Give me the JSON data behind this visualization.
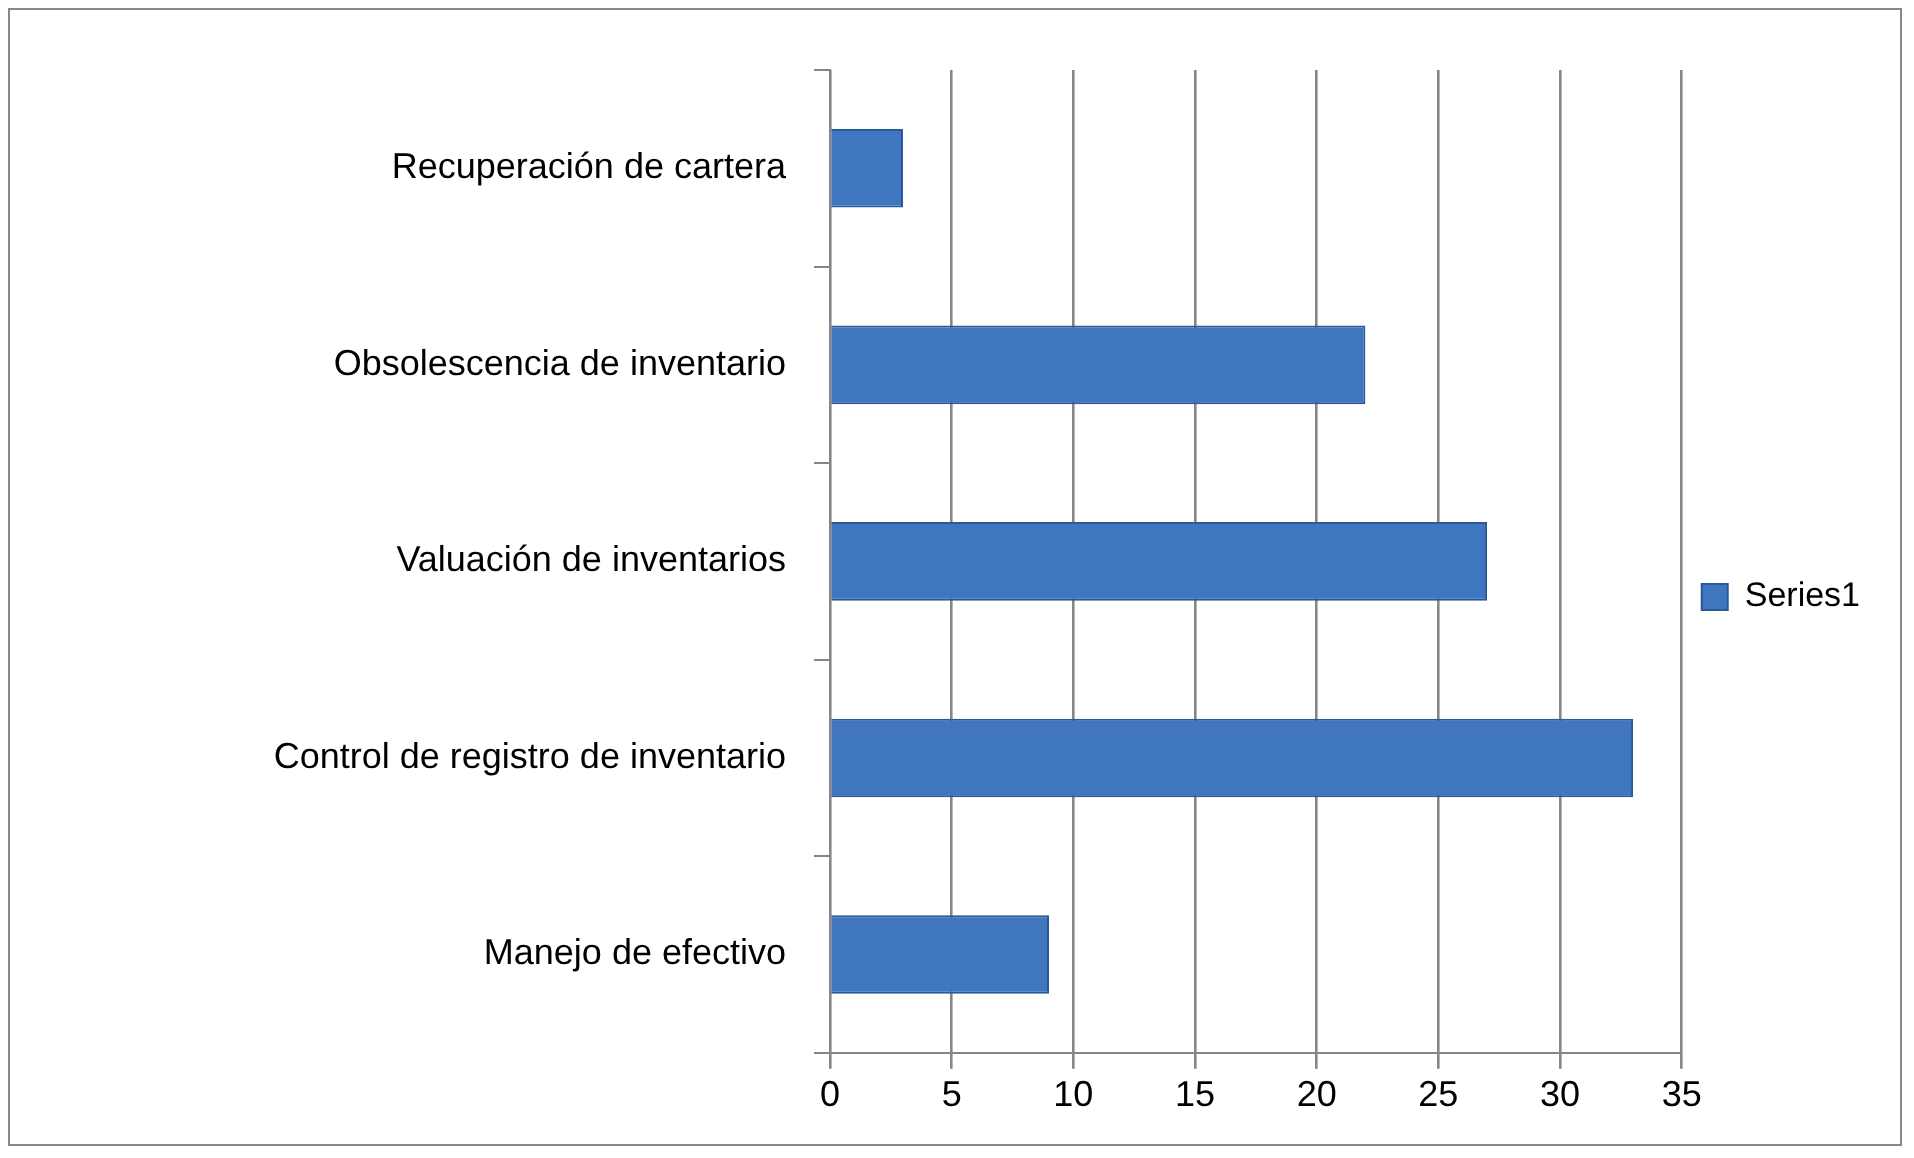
{
  "chart_data": {
    "type": "bar",
    "orientation": "horizontal",
    "categories": [
      "Recuperación de cartera",
      "Obsolescencia de inventario",
      "Valuación de inventarios",
      "Control de registro de inventario",
      "Manejo de efectivo"
    ],
    "series": [
      {
        "name": "Series1",
        "color": "#3f76bf",
        "values": [
          3,
          22,
          27,
          33,
          9
        ]
      }
    ],
    "xlim": [
      0,
      35
    ],
    "xticks": [
      0,
      5,
      10,
      15,
      20,
      25,
      30,
      35
    ],
    "grid": "x",
    "legend": "right"
  }
}
